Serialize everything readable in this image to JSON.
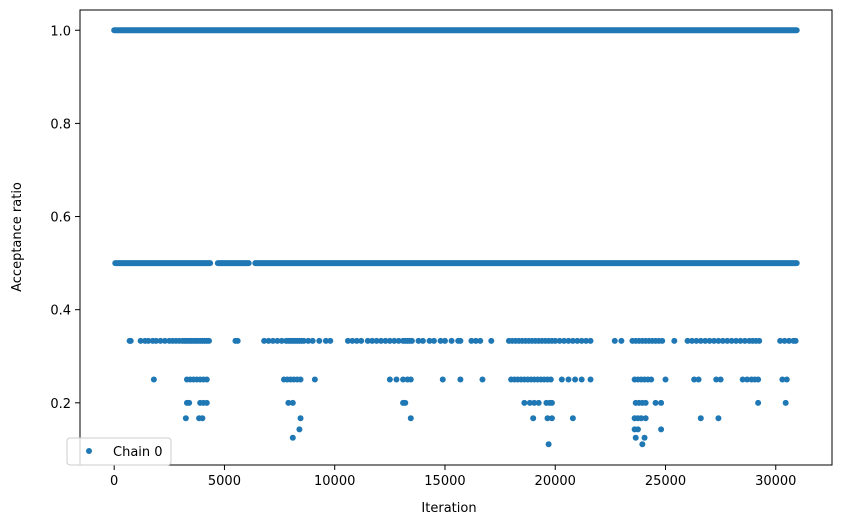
{
  "chart_data": {
    "type": "scatter",
    "title": "",
    "xlabel": "Iteration",
    "ylabel": "Acceptance ratio",
    "xlim": [
      -1550,
      32550
    ],
    "ylim": [
      0.0665,
      1.0435
    ],
    "xticks": [
      0,
      5000,
      10000,
      15000,
      20000,
      25000,
      30000
    ],
    "xtick_labels": [
      "0",
      "5000",
      "10000",
      "15000",
      "20000",
      "25000",
      "30000"
    ],
    "yticks": [
      0.2,
      0.4,
      0.6,
      0.8,
      1.0
    ],
    "ytick_labels": [
      "0.2",
      "0.4",
      "0.6",
      "0.8",
      "1.0"
    ],
    "grid": false,
    "legend": {
      "position": "lower-left",
      "entries": [
        "Chain 0"
      ]
    },
    "color": "#1f77b4",
    "series": [
      {
        "name": "Chain 0",
        "bands": [
          {
            "y": 1.0,
            "x_ranges": [
              [
                0,
                30950
              ]
            ]
          },
          {
            "y": 0.5,
            "x_ranges": [
              [
                50,
                4350
              ],
              [
                4700,
                6100
              ],
              [
                6400,
                30950
              ]
            ]
          }
        ],
        "points": [
          [
            700,
            0.333
          ],
          [
            750,
            0.333
          ],
          [
            1200,
            0.333
          ],
          [
            1400,
            0.333
          ],
          [
            1550,
            0.333
          ],
          [
            1750,
            0.333
          ],
          [
            1900,
            0.333
          ],
          [
            2100,
            0.333
          ],
          [
            2300,
            0.333
          ],
          [
            2500,
            0.333
          ],
          [
            2650,
            0.333
          ],
          [
            2800,
            0.333
          ],
          [
            2950,
            0.333
          ],
          [
            3100,
            0.333
          ],
          [
            3200,
            0.333
          ],
          [
            3300,
            0.333
          ],
          [
            3400,
            0.333
          ],
          [
            3500,
            0.333
          ],
          [
            3600,
            0.333
          ],
          [
            3700,
            0.333
          ],
          [
            3800,
            0.333
          ],
          [
            3900,
            0.333
          ],
          [
            4000,
            0.333
          ],
          [
            4100,
            0.333
          ],
          [
            4200,
            0.333
          ],
          [
            4300,
            0.333
          ],
          [
            5500,
            0.333
          ],
          [
            5600,
            0.333
          ],
          [
            6800,
            0.333
          ],
          [
            7000,
            0.333
          ],
          [
            7200,
            0.333
          ],
          [
            7400,
            0.333
          ],
          [
            7600,
            0.333
          ],
          [
            7800,
            0.333
          ],
          [
            7900,
            0.333
          ],
          [
            8000,
            0.333
          ],
          [
            8100,
            0.333
          ],
          [
            8200,
            0.333
          ],
          [
            8300,
            0.333
          ],
          [
            8400,
            0.333
          ],
          [
            8500,
            0.333
          ],
          [
            8600,
            0.333
          ],
          [
            8800,
            0.333
          ],
          [
            9000,
            0.333
          ],
          [
            9300,
            0.333
          ],
          [
            9600,
            0.333
          ],
          [
            9800,
            0.333
          ],
          [
            10600,
            0.333
          ],
          [
            10800,
            0.333
          ],
          [
            11000,
            0.333
          ],
          [
            11200,
            0.333
          ],
          [
            11500,
            0.333
          ],
          [
            11700,
            0.333
          ],
          [
            11900,
            0.333
          ],
          [
            12100,
            0.333
          ],
          [
            12300,
            0.333
          ],
          [
            12500,
            0.333
          ],
          [
            12700,
            0.333
          ],
          [
            12900,
            0.333
          ],
          [
            13100,
            0.333
          ],
          [
            13200,
            0.333
          ],
          [
            13300,
            0.333
          ],
          [
            13400,
            0.333
          ],
          [
            13500,
            0.333
          ],
          [
            13800,
            0.333
          ],
          [
            14000,
            0.333
          ],
          [
            14300,
            0.333
          ],
          [
            14500,
            0.333
          ],
          [
            14800,
            0.333
          ],
          [
            15000,
            0.333
          ],
          [
            15300,
            0.333
          ],
          [
            15600,
            0.333
          ],
          [
            15700,
            0.333
          ],
          [
            16200,
            0.333
          ],
          [
            16400,
            0.333
          ],
          [
            16600,
            0.333
          ],
          [
            17100,
            0.333
          ],
          [
            17900,
            0.333
          ],
          [
            18050,
            0.333
          ],
          [
            18200,
            0.333
          ],
          [
            18350,
            0.333
          ],
          [
            18500,
            0.333
          ],
          [
            18650,
            0.333
          ],
          [
            18800,
            0.333
          ],
          [
            18950,
            0.333
          ],
          [
            19100,
            0.333
          ],
          [
            19250,
            0.333
          ],
          [
            19400,
            0.333
          ],
          [
            19550,
            0.333
          ],
          [
            19700,
            0.333
          ],
          [
            19850,
            0.333
          ],
          [
            20000,
            0.333
          ],
          [
            20200,
            0.333
          ],
          [
            20400,
            0.333
          ],
          [
            20600,
            0.333
          ],
          [
            20800,
            0.333
          ],
          [
            21000,
            0.333
          ],
          [
            21200,
            0.333
          ],
          [
            21400,
            0.333
          ],
          [
            21600,
            0.333
          ],
          [
            22700,
            0.333
          ],
          [
            23000,
            0.333
          ],
          [
            23500,
            0.333
          ],
          [
            23650,
            0.333
          ],
          [
            23800,
            0.333
          ],
          [
            23950,
            0.333
          ],
          [
            24100,
            0.333
          ],
          [
            24250,
            0.333
          ],
          [
            24400,
            0.333
          ],
          [
            24550,
            0.333
          ],
          [
            24700,
            0.333
          ],
          [
            24850,
            0.333
          ],
          [
            25400,
            0.333
          ],
          [
            26000,
            0.333
          ],
          [
            26200,
            0.333
          ],
          [
            26400,
            0.333
          ],
          [
            26600,
            0.333
          ],
          [
            26800,
            0.333
          ],
          [
            27000,
            0.333
          ],
          [
            27200,
            0.333
          ],
          [
            27400,
            0.333
          ],
          [
            27600,
            0.333
          ],
          [
            27800,
            0.333
          ],
          [
            28000,
            0.333
          ],
          [
            28200,
            0.333
          ],
          [
            28400,
            0.333
          ],
          [
            28600,
            0.333
          ],
          [
            28800,
            0.333
          ],
          [
            28950,
            0.333
          ],
          [
            29100,
            0.333
          ],
          [
            29250,
            0.333
          ],
          [
            30200,
            0.333
          ],
          [
            30400,
            0.333
          ],
          [
            30600,
            0.333
          ],
          [
            30800,
            0.333
          ],
          [
            30900,
            0.333
          ],
          [
            1800,
            0.25
          ],
          [
            3300,
            0.25
          ],
          [
            3450,
            0.25
          ],
          [
            3600,
            0.25
          ],
          [
            3750,
            0.25
          ],
          [
            3900,
            0.25
          ],
          [
            4050,
            0.25
          ],
          [
            4200,
            0.25
          ],
          [
            7700,
            0.25
          ],
          [
            7850,
            0.25
          ],
          [
            8000,
            0.25
          ],
          [
            8150,
            0.25
          ],
          [
            8300,
            0.25
          ],
          [
            8450,
            0.25
          ],
          [
            9100,
            0.25
          ],
          [
            12500,
            0.25
          ],
          [
            12800,
            0.25
          ],
          [
            13100,
            0.25
          ],
          [
            13300,
            0.25
          ],
          [
            13450,
            0.25
          ],
          [
            14900,
            0.25
          ],
          [
            15700,
            0.25
          ],
          [
            16700,
            0.25
          ],
          [
            18000,
            0.25
          ],
          [
            18150,
            0.25
          ],
          [
            18300,
            0.25
          ],
          [
            18450,
            0.25
          ],
          [
            18600,
            0.25
          ],
          [
            18750,
            0.25
          ],
          [
            18900,
            0.25
          ],
          [
            19050,
            0.25
          ],
          [
            19200,
            0.25
          ],
          [
            19350,
            0.25
          ],
          [
            19500,
            0.25
          ],
          [
            19650,
            0.25
          ],
          [
            19800,
            0.25
          ],
          [
            20300,
            0.25
          ],
          [
            20600,
            0.25
          ],
          [
            20900,
            0.25
          ],
          [
            21200,
            0.25
          ],
          [
            21600,
            0.25
          ],
          [
            23600,
            0.25
          ],
          [
            23750,
            0.25
          ],
          [
            23900,
            0.25
          ],
          [
            24050,
            0.25
          ],
          [
            24200,
            0.25
          ],
          [
            24350,
            0.25
          ],
          [
            25000,
            0.25
          ],
          [
            26300,
            0.25
          ],
          [
            26500,
            0.25
          ],
          [
            27300,
            0.25
          ],
          [
            27500,
            0.25
          ],
          [
            28500,
            0.25
          ],
          [
            28700,
            0.25
          ],
          [
            28900,
            0.25
          ],
          [
            29050,
            0.25
          ],
          [
            29200,
            0.25
          ],
          [
            30300,
            0.25
          ],
          [
            30500,
            0.25
          ],
          [
            3300,
            0.2
          ],
          [
            3400,
            0.2
          ],
          [
            3900,
            0.2
          ],
          [
            4050,
            0.2
          ],
          [
            4200,
            0.2
          ],
          [
            7900,
            0.2
          ],
          [
            8100,
            0.2
          ],
          [
            13100,
            0.2
          ],
          [
            13200,
            0.2
          ],
          [
            18600,
            0.2
          ],
          [
            18850,
            0.2
          ],
          [
            19050,
            0.2
          ],
          [
            19250,
            0.2
          ],
          [
            19600,
            0.2
          ],
          [
            19750,
            0.2
          ],
          [
            19850,
            0.2
          ],
          [
            23650,
            0.2
          ],
          [
            23800,
            0.2
          ],
          [
            23950,
            0.2
          ],
          [
            24100,
            0.2
          ],
          [
            24550,
            0.2
          ],
          [
            24800,
            0.2
          ],
          [
            29200,
            0.2
          ],
          [
            30450,
            0.2
          ],
          [
            3250,
            0.167
          ],
          [
            3850,
            0.167
          ],
          [
            4000,
            0.167
          ],
          [
            8450,
            0.167
          ],
          [
            13450,
            0.167
          ],
          [
            19000,
            0.167
          ],
          [
            19650,
            0.167
          ],
          [
            19850,
            0.167
          ],
          [
            20800,
            0.167
          ],
          [
            23600,
            0.167
          ],
          [
            23750,
            0.167
          ],
          [
            23900,
            0.167
          ],
          [
            24100,
            0.167
          ],
          [
            26600,
            0.167
          ],
          [
            27400,
            0.167
          ],
          [
            8400,
            0.143
          ],
          [
            23600,
            0.143
          ],
          [
            23750,
            0.143
          ],
          [
            24800,
            0.143
          ],
          [
            8100,
            0.125
          ],
          [
            23650,
            0.125
          ],
          [
            24050,
            0.125
          ],
          [
            19700,
            0.111
          ],
          [
            23950,
            0.111
          ]
        ]
      }
    ]
  }
}
